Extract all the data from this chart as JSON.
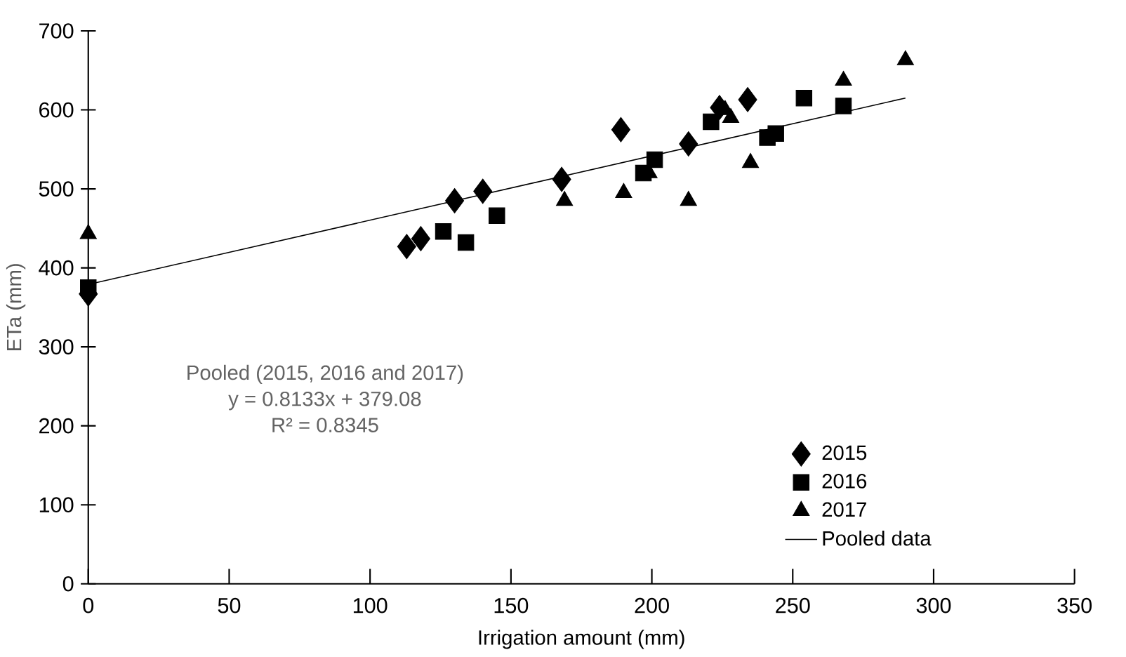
{
  "chart_data": {
    "type": "scatter",
    "xlabel": "Irrigation amount (mm)",
    "ylabel": "ETa (mm)",
    "xlim": [
      0,
      350
    ],
    "xticks": [
      0,
      50,
      100,
      150,
      200,
      250,
      300,
      350
    ],
    "ylim": [
      0,
      700
    ],
    "yticks": [
      0,
      100,
      200,
      300,
      400,
      500,
      600,
      700
    ],
    "grid": false,
    "legend": "bottom right",
    "annotations": [
      "Pooled (2015, 2016 and 2017)",
      "y = 0.8133x + 379.08",
      "R² = 0.8345"
    ],
    "series": [
      {
        "name": "2015",
        "marker": "diamond",
        "color": "#000000",
        "x": [
          0,
          113,
          118,
          130,
          140,
          168,
          189,
          213,
          224,
          234
        ],
        "values": [
          367,
          427,
          437,
          485,
          497,
          512,
          575,
          557,
          603,
          613
        ]
      },
      {
        "name": "2016",
        "marker": "square",
        "color": "#000000",
        "x": [
          0,
          126,
          134,
          145,
          197,
          201,
          221,
          241,
          244,
          254,
          268
        ],
        "values": [
          375,
          446,
          432,
          466,
          520,
          537,
          585,
          565,
          570,
          615,
          605
        ]
      },
      {
        "name": "2017",
        "marker": "triangle",
        "color": "#000000",
        "x": [
          0,
          169,
          190,
          199,
          213,
          226,
          228,
          235,
          268,
          290
        ],
        "values": [
          443,
          485,
          495,
          520,
          485,
          600,
          590,
          533,
          637,
          663
        ]
      },
      {
        "name": "Pooled data",
        "type": "line",
        "marker": "none",
        "line_style": "solid",
        "color": "#000000",
        "x": [
          0,
          290
        ],
        "values": [
          379,
          615
        ]
      }
    ]
  }
}
